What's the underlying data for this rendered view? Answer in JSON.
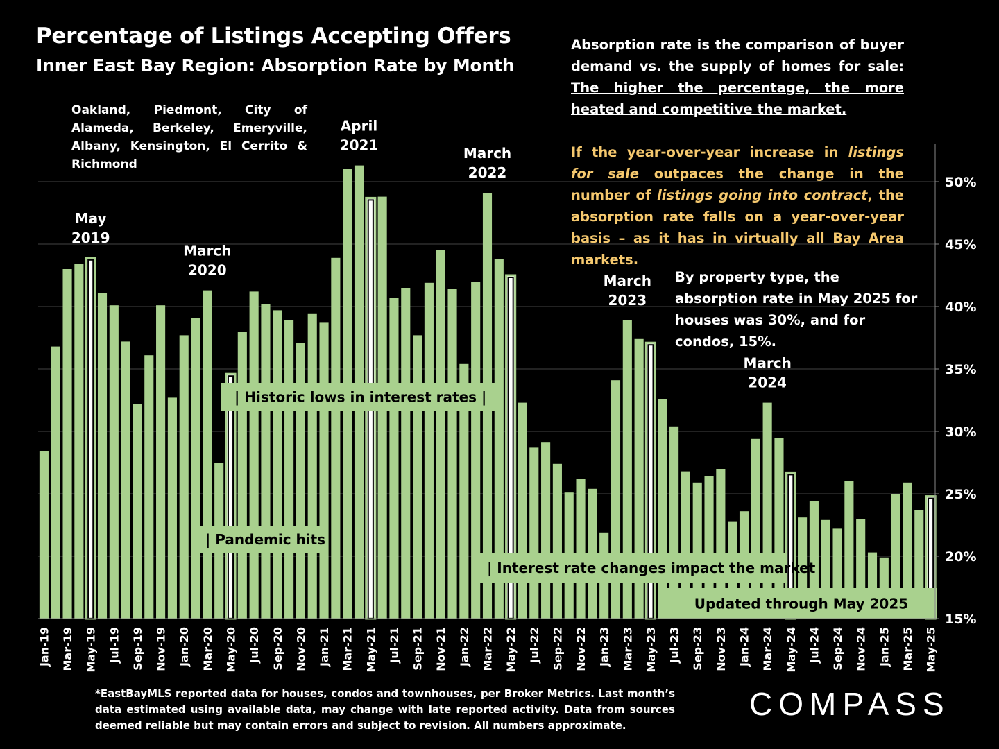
{
  "header": {
    "title": "Percentage of Listings Accepting Offers",
    "subtitle": "Inner East Bay Region:  Absorption Rate by Month",
    "cities": "Oakland, Piedmont, City of Alameda, Berkeley, Emeryville, Albany, Kensington, El Cerrito & Richmond"
  },
  "explanation": {
    "p1_plain": "Absorption rate is the comparison of buyer demand vs. the supply of homes for sale: ",
    "p1_underlined": "The higher the percentage, the more heated and competitive the market.",
    "p2_a": "If the year-over-year increase in ",
    "p2_b": "listings for sale",
    "p2_c": " outpaces the change in the number of ",
    "p2_d": "listings going into contract",
    "p2_e": ", the absorption rate falls on a year-over-year basis – as it has in virtually all Bay Area markets.",
    "p3": "By property type, the absorption rate in May 2025 for houses was 30%, and for condos, 15%."
  },
  "footnote": "*EastBayMLS reported data for houses, condos and townhouses, per Broker Metrics. Last month’s data estimated using available data, may change with late reported activity. Data from sources deemed reliable but may contain errors and subject to revision. All numbers approximate.",
  "logo": "COMPASS",
  "colors": {
    "bar": "#a9d18e",
    "highlight_fill": "#ffffff",
    "background": "#000000",
    "accent_text": "#f5c86e"
  },
  "chart_data": {
    "type": "bar",
    "ylim": [
      15,
      53
    ],
    "ytick_values": [
      15,
      20,
      25,
      30,
      35,
      40,
      45,
      50
    ],
    "ytick_labels": [
      "15%",
      "20%",
      "25%",
      "30%",
      "35%",
      "40%",
      "45%",
      "50%"
    ],
    "categories": [
      "Jan-19",
      "Feb-19",
      "Mar-19",
      "Apr-19",
      "May-19",
      "Jun-19",
      "Jul-19",
      "Aug-19",
      "Sep-19",
      "Oct-19",
      "Nov-19",
      "Dec-19",
      "Jan-20",
      "Feb-20",
      "Mar-20",
      "Apr-20",
      "May-20",
      "Jun-20",
      "Jul-20",
      "Aug-20",
      "Sep-20",
      "Oct-20",
      "Nov-20",
      "Dec-20",
      "Jan-21",
      "Feb-21",
      "Mar-21",
      "Apr-21",
      "May-21",
      "Jun-21",
      "Jul-21",
      "Aug-21",
      "Sep-21",
      "Oct-21",
      "Nov-21",
      "Dec-21",
      "Jan-22",
      "Feb-22",
      "Mar-22",
      "Apr-22",
      "May-22",
      "Jun-22",
      "Jul-22",
      "Aug-22",
      "Sep-22",
      "Oct-22",
      "Nov-22",
      "Dec-22",
      "Jan-23",
      "Feb-23",
      "Mar-23",
      "Apr-23",
      "May-23",
      "Jun-23",
      "Jul-23",
      "Aug-23",
      "Sep-23",
      "Oct-23",
      "Nov-23",
      "Dec-23",
      "Jan-24",
      "Feb-24",
      "Mar-24",
      "Apr-24",
      "May-24",
      "Jun-24",
      "Jul-24",
      "Aug-24",
      "Sep-24",
      "Oct-24",
      "Nov-24",
      "Dec-24",
      "Jan-25",
      "Feb-25",
      "Mar-25",
      "Apr-25",
      "May-25"
    ],
    "values": [
      28.4,
      36.8,
      43.0,
      43.4,
      43.9,
      41.1,
      40.1,
      37.2,
      32.2,
      36.1,
      40.1,
      32.7,
      37.7,
      39.1,
      41.3,
      27.5,
      34.6,
      38.0,
      41.2,
      40.2,
      39.7,
      38.9,
      37.1,
      39.4,
      38.7,
      43.9,
      51.0,
      51.3,
      48.7,
      48.8,
      40.7,
      41.5,
      37.7,
      41.9,
      44.5,
      41.4,
      35.4,
      42.0,
      49.1,
      43.8,
      42.5,
      32.3,
      28.7,
      29.1,
      27.4,
      25.1,
      26.2,
      25.4,
      21.9,
      34.1,
      38.9,
      37.4,
      37.1,
      32.6,
      30.4,
      26.8,
      25.9,
      26.4,
      27.0,
      22.8,
      23.6,
      29.4,
      32.3,
      29.5,
      26.7,
      23.1,
      24.4,
      22.9,
      22.2,
      26.0,
      23.0,
      20.3,
      19.9,
      25.0,
      25.9,
      23.7,
      24.8
    ],
    "highlighted_categories": [
      "May-19",
      "May-20",
      "May-21",
      "May-22",
      "May-23",
      "May-24",
      "May-25"
    ],
    "tick_labels": [
      "Jan-19",
      "Mar-19",
      "May-19",
      "Jul-19",
      "Sep-19",
      "Nov-19",
      "Jan-20",
      "Mar-20",
      "May-20",
      "Jul-20",
      "Sep-20",
      "Nov-20",
      "Jan-21",
      "Mar-21",
      "May-21",
      "Jul-21",
      "Sep-21",
      "Nov-21",
      "Jan-22",
      "Mar-22",
      "May-22",
      "Jul-22",
      "Sep-22",
      "Nov-22",
      "Jan-23",
      "Mar-23",
      "May-23",
      "Jul-23",
      "Sep-23",
      "Nov-23",
      "Jan-24",
      "Mar-24",
      "May-24",
      "Jul-24",
      "Sep-24",
      "Nov-24",
      "Jan-25",
      "Mar-25",
      "May-25"
    ],
    "grid": true,
    "annotations": [
      {
        "name": "peak-may-2019",
        "text": [
          "May",
          "2019"
        ],
        "category": "May-19"
      },
      {
        "name": "peak-march-2020",
        "text": [
          "March",
          "2020"
        ],
        "category": "Mar-20"
      },
      {
        "name": "peak-april-2021",
        "text": [
          "April",
          "2021"
        ],
        "category": "Apr-21"
      },
      {
        "name": "peak-march-2022",
        "text": [
          "March",
          "2022"
        ],
        "category": "Mar-22"
      },
      {
        "name": "peak-march-2023",
        "text": [
          "March",
          "2023"
        ],
        "category": "Mar-23"
      },
      {
        "name": "peak-march-2024",
        "text": [
          "March",
          "2024"
        ],
        "category": "Mar-24"
      }
    ],
    "event_labels": [
      {
        "name": "historic-lows-label",
        "text": "|     Historic lows in interest rates      |"
      },
      {
        "name": "pandemic-label",
        "text": "| Pandemic hits"
      },
      {
        "name": "interest-rate-changes-label",
        "text": "| Interest rate changes impact the market"
      },
      {
        "name": "updated-through-label",
        "text": "Updated through May 2025"
      }
    ]
  }
}
